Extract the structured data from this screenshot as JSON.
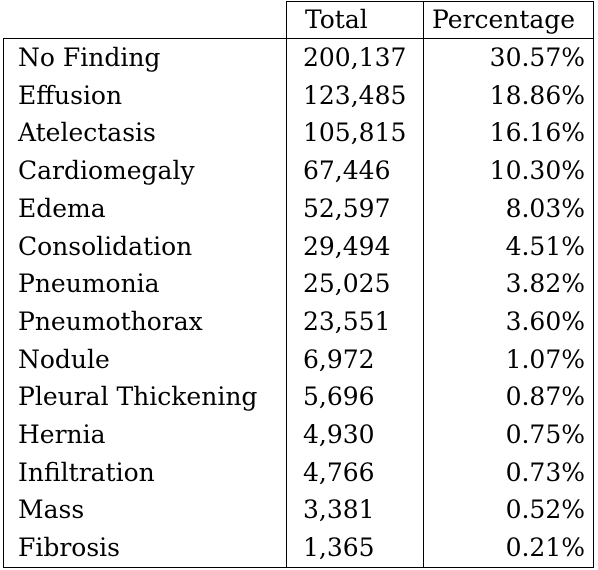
{
  "table": {
    "columns": [
      "",
      "Total",
      "Percentage"
    ],
    "rows": [
      {
        "label": "No Finding",
        "total": "200,137",
        "percentage": "30.57%"
      },
      {
        "label": "Effusion",
        "total": "123,485",
        "percentage": "18.86%"
      },
      {
        "label": "Atelectasis",
        "total": "105,815",
        "percentage": "16.16%"
      },
      {
        "label": "Cardiomegaly",
        "total": "67,446",
        "percentage": "10.30%"
      },
      {
        "label": "Edema",
        "total": "52,597",
        "percentage": "8.03%"
      },
      {
        "label": "Consolidation",
        "total": "29,494",
        "percentage": "4.51%"
      },
      {
        "label": "Pneumonia",
        "total": "25,025",
        "percentage": "3.82%"
      },
      {
        "label": "Pneumothorax",
        "total": "23,551",
        "percentage": "3.60%"
      },
      {
        "label": "Nodule",
        "total": "6,972",
        "percentage": "1.07%"
      },
      {
        "label": "Pleural Thickening",
        "total": "5,696",
        "percentage": "0.87%"
      },
      {
        "label": "Hernia",
        "total": "4,930",
        "percentage": "0.75%"
      },
      {
        "label": "Infiltration",
        "total": "4,766",
        "percentage": "0.73%"
      },
      {
        "label": "Mass",
        "total": "3,381",
        "percentage": "0.52%"
      },
      {
        "label": "Fibrosis",
        "total": "1,365",
        "percentage": "0.21%"
      }
    ]
  }
}
